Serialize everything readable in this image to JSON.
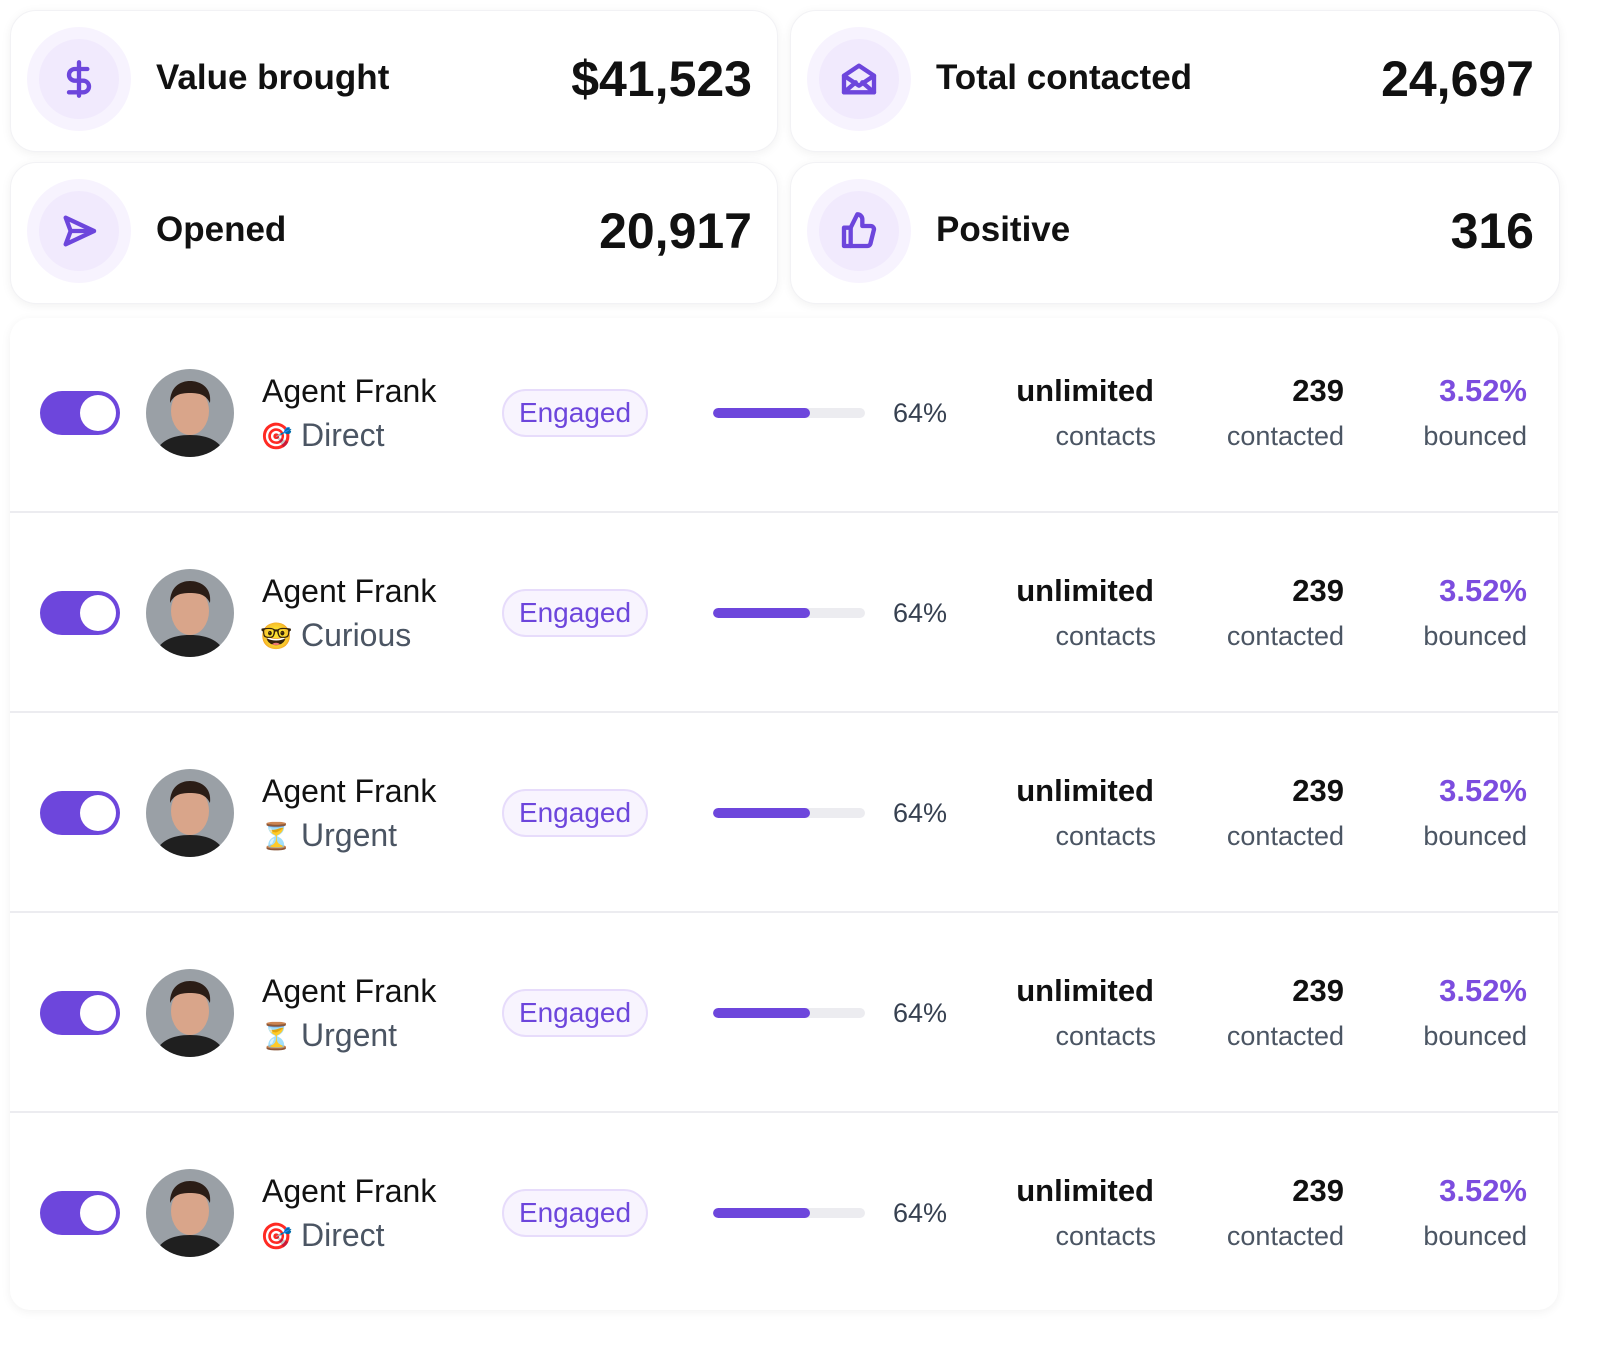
{
  "stats": [
    {
      "label": "Value brought",
      "value": "$41,523"
    },
    {
      "label": "Total contacted",
      "value": "24,697"
    },
    {
      "label": "Opened",
      "value": "20,917"
    },
    {
      "label": "Positive",
      "value": "316"
    }
  ],
  "agents": [
    {
      "name": "Agent Frank",
      "tag_icon": "🎯",
      "tag": "Direct",
      "status": "Engaged",
      "progress": {
        "value": 64,
        "label": "64%"
      },
      "limit": "unlimited",
      "limit_unit": "contacts",
      "contacted": "239",
      "contacted_unit": "contacted",
      "bounced": "3.52%",
      "bounced_unit": "bounced"
    },
    {
      "name": "Agent Frank",
      "tag_icon": "🤓",
      "tag": "Curious",
      "status": "Engaged",
      "progress": {
        "value": 64,
        "label": "64%"
      },
      "limit": "unlimited",
      "limit_unit": "contacts",
      "contacted": "239",
      "contacted_unit": "contacted",
      "bounced": "3.52%",
      "bounced_unit": "bounced"
    },
    {
      "name": "Agent Frank",
      "tag_icon": "⏳",
      "tag": "Urgent",
      "status": "Engaged",
      "progress": {
        "value": 64,
        "label": "64%"
      },
      "limit": "unlimited",
      "limit_unit": "contacts",
      "contacted": "239",
      "contacted_unit": "contacted",
      "bounced": "3.52%",
      "bounced_unit": "bounced"
    },
    {
      "name": "Agent Frank",
      "tag_icon": "⏳",
      "tag": "Urgent",
      "status": "Engaged",
      "progress": {
        "value": 64,
        "label": "64%"
      },
      "limit": "unlimited",
      "limit_unit": "contacts",
      "contacted": "239",
      "contacted_unit": "contacted",
      "bounced": "3.52%",
      "bounced_unit": "bounced"
    },
    {
      "name": "Agent Frank",
      "tag_icon": "🎯",
      "tag": "Direct",
      "status": "Engaged",
      "progress": {
        "value": 64,
        "label": "64%"
      },
      "limit": "unlimited",
      "limit_unit": "contacts",
      "contacted": "239",
      "contacted_unit": "contacted",
      "bounced": "3.52%",
      "bounced_unit": "bounced"
    }
  ]
}
